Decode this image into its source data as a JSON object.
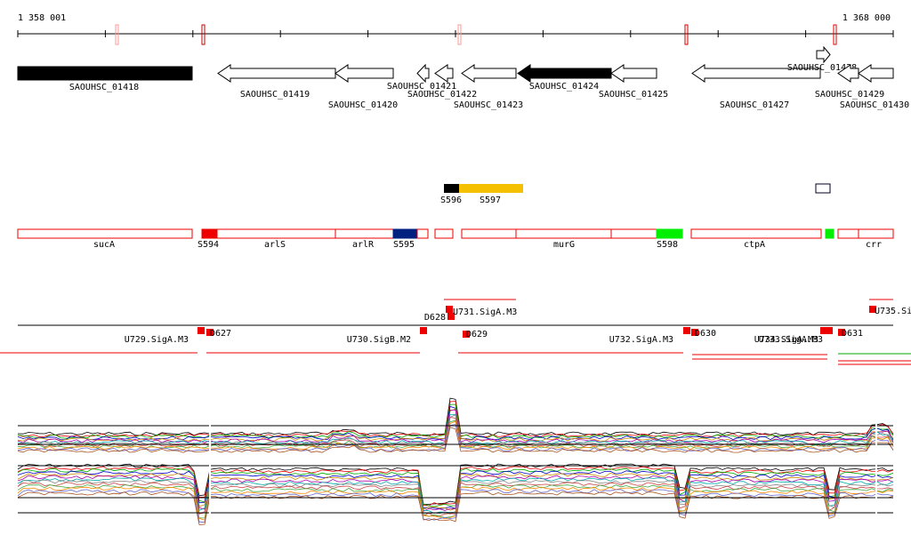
{
  "ruler": {
    "start": "1 358 001",
    "end": "1 368 000"
  },
  "genes": [
    "SAOUHSC_01418",
    "SAOUHSC_01419",
    "SAOUHSC_01420",
    "SAOUHSC_01421",
    "SAOUHSC_01422",
    "SAOUHSC_01423",
    "SAOUHSC_01424",
    "SAOUHSC_01425",
    "SAOUHSC_01427",
    "SAOUHSC_01428",
    "SAOUHSC_01429",
    "SAOUHSC_01430"
  ],
  "segments": [
    "S596",
    "S597"
  ],
  "annotations": [
    "sucA",
    "S594",
    "arlS",
    "arlR",
    "S595",
    "murG",
    "S598",
    "ctpA",
    "crr"
  ],
  "promoters": [
    "U729.SigA.M3",
    "D627",
    "U730.SigB.M2",
    "D628",
    "U731.SigA.M3",
    "D629",
    "U732.SigA.M3",
    "D630",
    "U733.SigA.M3",
    "U734.SigA.M3",
    "D631",
    "U735.Si"
  ]
}
